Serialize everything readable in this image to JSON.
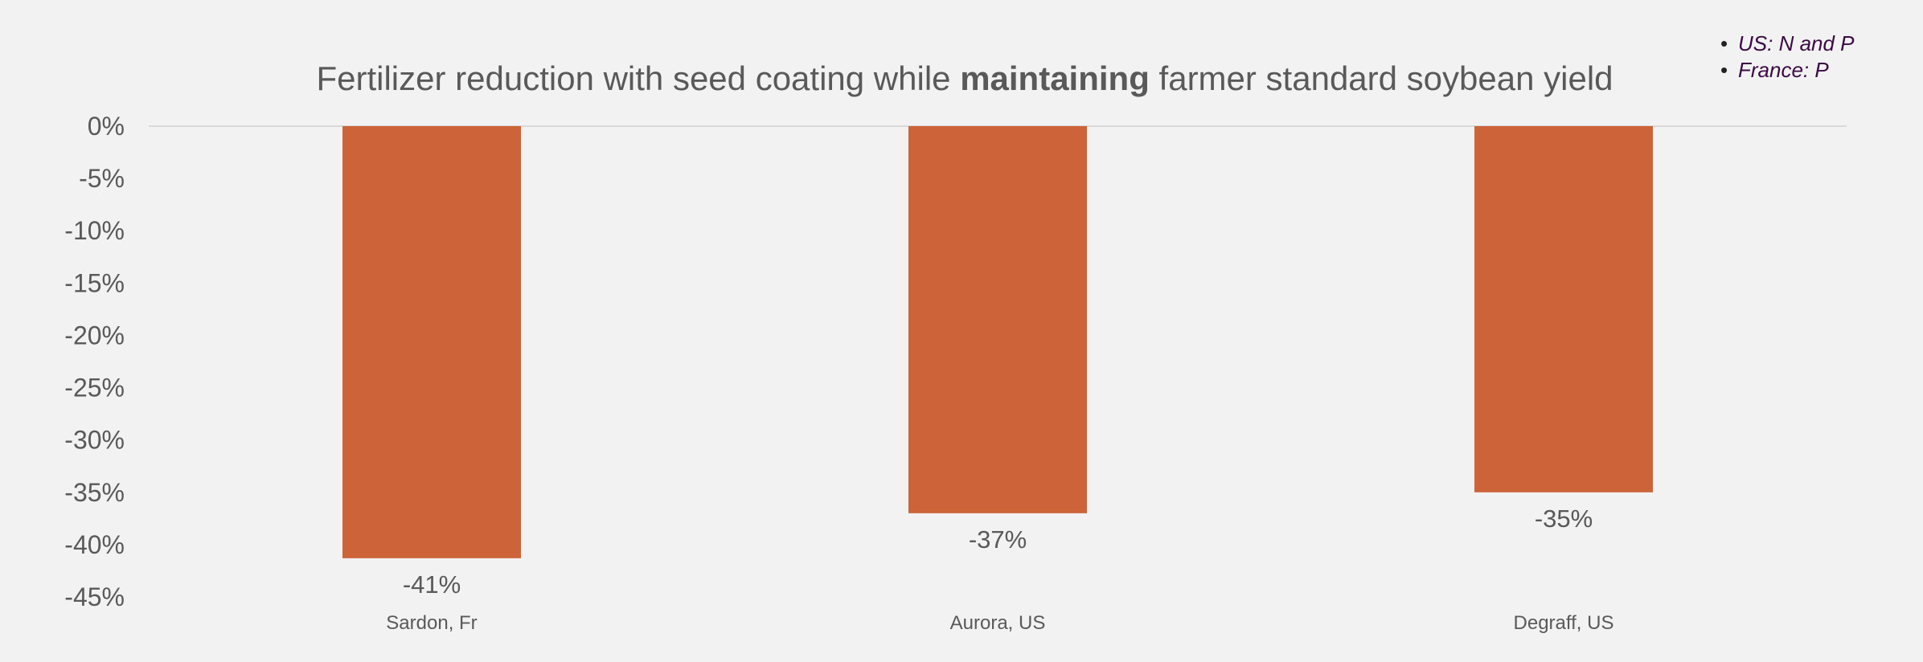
{
  "chart_data": {
    "type": "bar",
    "title_parts": [
      {
        "text": "Fertilizer reduction with seed coating while ",
        "bold": false
      },
      {
        "text": "maintaining",
        "bold": true
      },
      {
        "text": " farmer standard soybean yield",
        "bold": false
      }
    ],
    "categories": [
      "Sardon, Fr",
      "Aurora, US",
      "Degraff, US"
    ],
    "values": [
      -41.3,
      -37,
      -35
    ],
    "data_labels": [
      "-41%",
      "-37%",
      "-35%"
    ],
    "y_ticks": [
      0,
      -5,
      -10,
      -15,
      -20,
      -25,
      -30,
      -35,
      -40,
      -45
    ],
    "y_tick_labels": [
      "0%",
      "-5%",
      "-10%",
      "-15%",
      "-20%",
      "-25%",
      "-30%",
      "-35%",
      "-40%",
      "-45%"
    ],
    "ylim": [
      -45,
      0
    ],
    "grid": false,
    "xlabel": "",
    "ylabel": ""
  },
  "colors": {
    "bar": "#cd6338",
    "background": "#f2f2f2",
    "text": "#595959",
    "note_text": "#3b0a45",
    "zero_line": "#d9d9d9"
  },
  "notes": [
    {
      "bullet": "•",
      "text": "US: N and P"
    },
    {
      "bullet": "•",
      "text": "France: P"
    }
  ]
}
